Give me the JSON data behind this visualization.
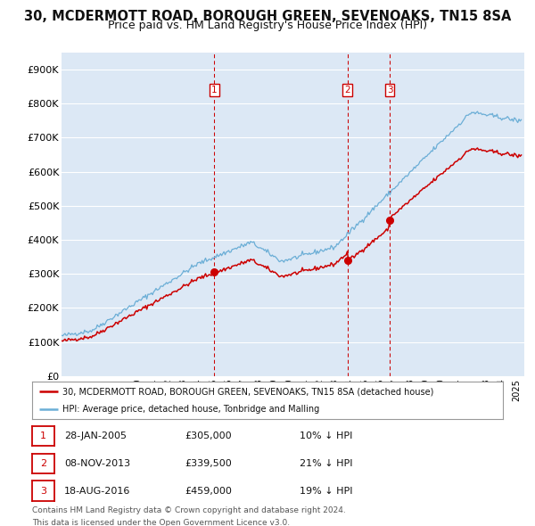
{
  "title": "30, MCDERMOTT ROAD, BOROUGH GREEN, SEVENOAKS, TN15 8SA",
  "subtitle": "Price paid vs. HM Land Registry's House Price Index (HPI)",
  "xlim_start": 1995.0,
  "xlim_end": 2025.5,
  "ylim": [
    0,
    950000
  ],
  "yticks": [
    0,
    100000,
    200000,
    300000,
    400000,
    500000,
    600000,
    700000,
    800000,
    900000
  ],
  "ytick_labels": [
    "£0",
    "£100K",
    "£200K",
    "£300K",
    "£400K",
    "£500K",
    "£600K",
    "£700K",
    "£800K",
    "£900K"
  ],
  "hpi_color": "#6baed6",
  "sale_color": "#cc0000",
  "marker_color": "#cc0000",
  "vline_color": "#cc0000",
  "transaction_vlines": [
    2005.07,
    2013.85,
    2016.63
  ],
  "transaction_labels": [
    "1",
    "2",
    "3"
  ],
  "transaction_prices": [
    305000,
    339500,
    459000
  ],
  "transaction_dates_str": [
    "28-JAN-2005",
    "08-NOV-2013",
    "18-AUG-2016"
  ],
  "transaction_hpi_pct": [
    "10%",
    "21%",
    "19%"
  ],
  "legend_sale_label": "30, MCDERMOTT ROAD, BOROUGH GREEN, SEVENOAKS, TN15 8SA (detached house)",
  "legend_hpi_label": "HPI: Average price, detached house, Tonbridge and Malling",
  "footer1": "Contains HM Land Registry data © Crown copyright and database right 2024.",
  "footer2": "This data is licensed under the Open Government Licence v3.0.",
  "background_color": "#ffffff",
  "plot_bg_color": "#dce8f5",
  "grid_color": "#ffffff",
  "title_fontsize": 10.5,
  "subtitle_fontsize": 9
}
